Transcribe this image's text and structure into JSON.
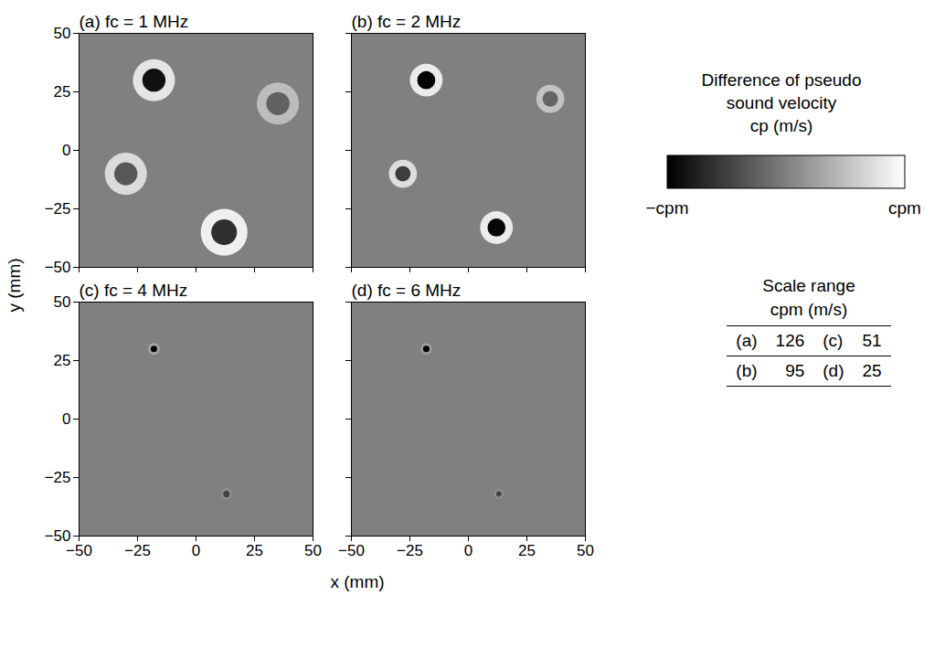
{
  "chart_data": [
    {
      "type": "heatmap",
      "title": "(a) fc = 1 MHz",
      "tick_labels": "y",
      "xlim": [
        -50,
        50
      ],
      "xticks": [
        -50,
        -25,
        0,
        25,
        50
      ],
      "ylim": [
        -50,
        50
      ],
      "yticks": [
        -50,
        -25,
        0,
        25,
        50
      ],
      "clim": [
        -126,
        126
      ],
      "features": [
        {
          "x": -18,
          "y": 30,
          "radius": 9,
          "center": -110,
          "rim": 100
        },
        {
          "x": 35,
          "y": 20,
          "radius": 9,
          "center": -30,
          "rim": 60
        },
        {
          "x": -30,
          "y": -10,
          "radius": 9,
          "center": -40,
          "rim": 90
        },
        {
          "x": 12,
          "y": -35,
          "radius": 10,
          "center": -80,
          "rim": 110
        }
      ]
    },
    {
      "type": "heatmap",
      "title": "(b) fc = 2 MHz",
      "tick_labels": false,
      "xlim": [
        -50,
        50
      ],
      "xticks": [
        -50,
        -25,
        0,
        25,
        50
      ],
      "ylim": [
        -50,
        50
      ],
      "yticks": [
        -50,
        -25,
        0,
        25,
        50
      ],
      "clim": [
        -95,
        95
      ],
      "features": [
        {
          "x": -18,
          "y": 30,
          "radius": 7,
          "center": -95,
          "rim": 80
        },
        {
          "x": 35,
          "y": 22,
          "radius": 6,
          "center": -20,
          "rim": 50
        },
        {
          "x": -28,
          "y": -10,
          "radius": 6,
          "center": -50,
          "rim": 70
        },
        {
          "x": 12,
          "y": -33,
          "radius": 7,
          "center": -90,
          "rim": 80
        }
      ]
    },
    {
      "type": "heatmap",
      "title": "(c) fc = 4 MHz",
      "tick_labels": true,
      "xlim": [
        -50,
        50
      ],
      "xticks": [
        -50,
        -25,
        0,
        25,
        50
      ],
      "ylim": [
        -50,
        50
      ],
      "yticks": [
        -50,
        -25,
        0,
        25,
        50
      ],
      "clim": [
        -51,
        51
      ],
      "features": [
        {
          "x": -18,
          "y": 30,
          "radius": 2.5,
          "center": -51,
          "rim": 15
        },
        {
          "x": 13,
          "y": -32,
          "radius": 2.5,
          "center": -25,
          "rim": 5
        }
      ]
    },
    {
      "type": "heatmap",
      "title": "(d) fc = 6 MHz",
      "tick_labels": "x",
      "xlim": [
        -50,
        50
      ],
      "xticks": [
        -50,
        -25,
        0,
        25,
        50
      ],
      "ylim": [
        -50,
        50
      ],
      "yticks": [
        -50,
        -25,
        0,
        25,
        50
      ],
      "clim": [
        -25,
        25
      ],
      "features": [
        {
          "x": -18,
          "y": 30,
          "radius": 2.5,
          "center": -25,
          "rim": 5
        },
        {
          "x": 13,
          "y": -32,
          "radius": 2,
          "center": -12,
          "rim": 3
        }
      ]
    }
  ],
  "xlabel": "x (mm)",
  "ylabel": "y (mm)",
  "colorbar": {
    "title_lines": [
      "Difference of pseudo",
      "sound velocity",
      "cp (m/s)"
    ],
    "min_label": "−cpm",
    "max_label": "cpm",
    "colors": [
      "#000000",
      "#ffffff"
    ]
  },
  "scale_table": {
    "title_lines": [
      "Scale range",
      "cpm (m/s)"
    ],
    "rows": [
      [
        {
          "label": "(a)",
          "value": 126
        },
        {
          "label": "(c)",
          "value": 51
        }
      ],
      [
        {
          "label": "(b)",
          "value": 95
        },
        {
          "label": "(d)",
          "value": 25
        }
      ]
    ]
  }
}
